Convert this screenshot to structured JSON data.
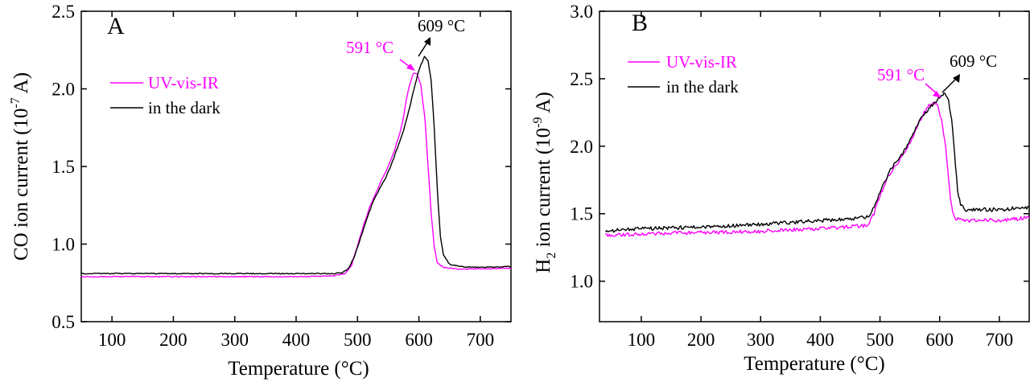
{
  "chart_data": [
    {
      "type": "line",
      "panel_label": "A",
      "xlabel": "Temperature (°C)",
      "ylabel": "CO ion current (10",
      "ylabel_sup": "-7",
      "ylabel_suffix": " A)",
      "xlim": [
        50,
        750
      ],
      "ylim": [
        0.5,
        2.5
      ],
      "xticks": [
        "100",
        "200",
        "300",
        "400",
        "500",
        "600",
        "700"
      ],
      "yticks": [
        "0.5",
        "1.0",
        "1.5",
        "2.0",
        "2.5"
      ],
      "legend_position": "upper-left",
      "series": [
        {
          "name": "UV-vis-IR",
          "color": "#ff00ff",
          "points": [
            [
              50,
              0.79
            ],
            [
              100,
              0.79
            ],
            [
              200,
              0.79
            ],
            [
              300,
              0.79
            ],
            [
              400,
              0.79
            ],
            [
              460,
              0.795
            ],
            [
              480,
              0.81
            ],
            [
              490,
              0.86
            ],
            [
              500,
              0.99
            ],
            [
              510,
              1.12
            ],
            [
              520,
              1.24
            ],
            [
              530,
              1.33
            ],
            [
              540,
              1.42
            ],
            [
              550,
              1.5
            ],
            [
              560,
              1.6
            ],
            [
              570,
              1.73
            ],
            [
              575,
              1.82
            ],
            [
              580,
              1.94
            ],
            [
              585,
              2.03
            ],
            [
              591,
              2.1
            ],
            [
              597,
              2.1
            ],
            [
              603,
              2.03
            ],
            [
              610,
              1.8
            ],
            [
              615,
              1.5
            ],
            [
              620,
              1.2
            ],
            [
              625,
              0.98
            ],
            [
              630,
              0.88
            ],
            [
              640,
              0.85
            ],
            [
              660,
              0.84
            ],
            [
              700,
              0.84
            ],
            [
              750,
              0.845
            ]
          ]
        },
        {
          "name": "in the dark",
          "color": "#000000",
          "points": [
            [
              50,
              0.81
            ],
            [
              100,
              0.81
            ],
            [
              200,
              0.81
            ],
            [
              300,
              0.81
            ],
            [
              400,
              0.81
            ],
            [
              460,
              0.81
            ],
            [
              475,
              0.815
            ],
            [
              485,
              0.84
            ],
            [
              495,
              0.92
            ],
            [
              505,
              1.04
            ],
            [
              515,
              1.16
            ],
            [
              525,
              1.27
            ],
            [
              535,
              1.35
            ],
            [
              545,
              1.42
            ],
            [
              555,
              1.51
            ],
            [
              565,
              1.62
            ],
            [
              575,
              1.73
            ],
            [
              585,
              1.88
            ],
            [
              592,
              2.0
            ],
            [
              600,
              2.12
            ],
            [
              609,
              2.21
            ],
            [
              615,
              2.18
            ],
            [
              620,
              2.05
            ],
            [
              625,
              1.75
            ],
            [
              630,
              1.35
            ],
            [
              635,
              1.05
            ],
            [
              640,
              0.93
            ],
            [
              650,
              0.87
            ],
            [
              670,
              0.855
            ],
            [
              700,
              0.85
            ],
            [
              750,
              0.855
            ]
          ]
        }
      ],
      "annotations": [
        {
          "text": "591 °C",
          "color": "#ff00ff",
          "x": 591,
          "y": 2.1
        },
        {
          "text": "609 °C",
          "color": "#000000",
          "x": 609,
          "y": 2.21
        }
      ]
    },
    {
      "type": "line",
      "panel_label": "B",
      "xlabel": "Temperature (°C)",
      "ylabel_prefix": "H",
      "ylabel_sub": "2",
      "ylabel": " ion current (10",
      "ylabel_sup": "-9",
      "ylabel_suffix": " A)",
      "xlim": [
        30,
        750
      ],
      "ylim": [
        0.7,
        3.0
      ],
      "xticks": [
        "100",
        "200",
        "300",
        "400",
        "500",
        "600",
        "700"
      ],
      "yticks": [
        "1.0",
        "1.5",
        "2.0",
        "2.5",
        "3.0"
      ],
      "legend_position": "upper-left",
      "series": [
        {
          "name": "UV-vis-IR",
          "color": "#ff00ff",
          "points": [
            [
              40,
              1.34
            ],
            [
              100,
              1.35
            ],
            [
              200,
              1.36
            ],
            [
              300,
              1.37
            ],
            [
              400,
              1.39
            ],
            [
              470,
              1.41
            ],
            [
              480,
              1.42
            ],
            [
              490,
              1.5
            ],
            [
              500,
              1.63
            ],
            [
              510,
              1.74
            ],
            [
              520,
              1.82
            ],
            [
              530,
              1.88
            ],
            [
              540,
              1.94
            ],
            [
              550,
              2.02
            ],
            [
              560,
              2.12
            ],
            [
              570,
              2.22
            ],
            [
              580,
              2.29
            ],
            [
              591,
              2.33
            ],
            [
              597,
              2.3
            ],
            [
              603,
              2.2
            ],
            [
              610,
              2.0
            ],
            [
              615,
              1.75
            ],
            [
              620,
              1.55
            ],
            [
              625,
              1.47
            ],
            [
              640,
              1.45
            ],
            [
              700,
              1.45
            ],
            [
              750,
              1.47
            ]
          ]
        },
        {
          "name": "in the dark",
          "color": "#000000",
          "points": [
            [
              40,
              1.37
            ],
            [
              100,
              1.39
            ],
            [
              200,
              1.4
            ],
            [
              300,
              1.42
            ],
            [
              400,
              1.45
            ],
            [
              470,
              1.47
            ],
            [
              480,
              1.48
            ],
            [
              490,
              1.55
            ],
            [
              500,
              1.65
            ],
            [
              510,
              1.76
            ],
            [
              520,
              1.84
            ],
            [
              530,
              1.9
            ],
            [
              540,
              1.96
            ],
            [
              550,
              2.04
            ],
            [
              560,
              2.14
            ],
            [
              570,
              2.22
            ],
            [
              580,
              2.27
            ],
            [
              590,
              2.32
            ],
            [
              600,
              2.36
            ],
            [
              609,
              2.39
            ],
            [
              615,
              2.34
            ],
            [
              620,
              2.2
            ],
            [
              625,
              1.95
            ],
            [
              630,
              1.68
            ],
            [
              635,
              1.56
            ],
            [
              645,
              1.53
            ],
            [
              700,
              1.53
            ],
            [
              750,
              1.55
            ]
          ]
        }
      ],
      "annotations": [
        {
          "text": "591 °C",
          "color": "#ff00ff",
          "x": 591,
          "y": 2.33
        },
        {
          "text": "609 °C",
          "color": "#000000",
          "x": 609,
          "y": 2.39
        }
      ]
    }
  ]
}
